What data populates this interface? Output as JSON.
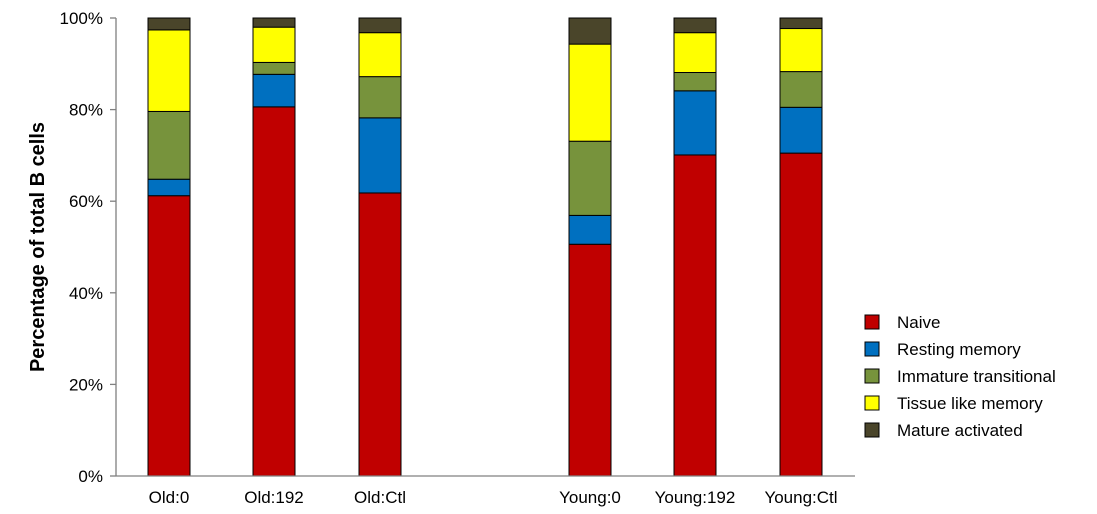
{
  "chart_data": {
    "type": "bar",
    "stacked": true,
    "normalized": true,
    "title": "",
    "xlabel": "",
    "ylabel": "Percentage of total B cells",
    "ylim": [
      0,
      100
    ],
    "yticks": [
      "0%",
      "20%",
      "40%",
      "60%",
      "80%",
      "100%"
    ],
    "categories": [
      "Old:0",
      "Old:192",
      "Old:Ctl",
      "Young:0",
      "Young:192",
      "Young:Ctl"
    ],
    "grid": false,
    "legend_position": "right",
    "series": [
      {
        "name": "Naive",
        "color": "#c00000",
        "values": [
          61.2,
          80.6,
          61.8,
          50.6,
          70.1,
          70.5
        ]
      },
      {
        "name": "Resting memory",
        "color": "#0070c0",
        "values": [
          3.6,
          7.1,
          16.4,
          6.3,
          14.0,
          10.0
        ]
      },
      {
        "name": "Immature transitional",
        "color": "#77933c",
        "values": [
          14.8,
          2.6,
          9.0,
          16.2,
          4.0,
          7.8
        ]
      },
      {
        "name": "Tissue like memory",
        "color": "#ffff00",
        "values": [
          17.8,
          7.7,
          9.6,
          21.2,
          8.7,
          9.4
        ]
      },
      {
        "name": "Mature activated",
        "color": "#4a452a",
        "values": [
          2.6,
          2.0,
          3.2,
          5.7,
          3.2,
          2.3
        ]
      }
    ]
  }
}
